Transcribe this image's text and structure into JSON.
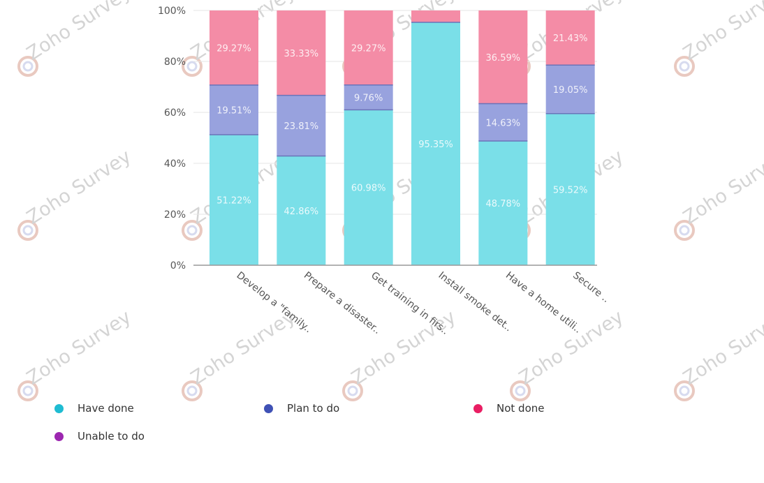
{
  "chart_data": {
    "type": "bar",
    "stacked": true,
    "percent": true,
    "categories": [
      "Develop a \"family..",
      "Prepare a disaster..",
      "Get training in firs..",
      "Install smoke det..",
      "Have a home utili..",
      "Secure .."
    ],
    "series": [
      {
        "name": "Have done",
        "color": "#7adfe8",
        "legend_color": "#1fbcd2",
        "values": [
          51.22,
          42.86,
          60.98,
          95.35,
          48.78,
          59.52
        ],
        "labels": [
          "51.22%",
          "42.86%",
          "60.98%",
          "95.35%",
          "48.78%",
          "59.52%"
        ]
      },
      {
        "name": "Unable to do",
        "color": "#b07bd0",
        "legend_color": "#9c27b0",
        "values": [
          0,
          0,
          0,
          0,
          0,
          0
        ],
        "labels": [
          "",
          "",
          "",
          "",
          "",
          ""
        ]
      },
      {
        "name": "Plan to do",
        "color": "#98a2de",
        "legend_color": "#3f51b5",
        "values": [
          19.51,
          23.81,
          9.76,
          0.0,
          14.63,
          19.05
        ],
        "labels": [
          "19.51%",
          "23.81%",
          "9.76%",
          "",
          "14.63%",
          "19.05%"
        ]
      },
      {
        "name": "Not done",
        "color": "#f48ca6",
        "legend_color": "#e91e63",
        "values": [
          29.27,
          33.33,
          29.27,
          4.65,
          36.59,
          21.43
        ],
        "labels": [
          "29.27%",
          "33.33%",
          "29.27%",
          "",
          "36.59%",
          "21.43%"
        ]
      }
    ],
    "y_ticks": [
      "0%",
      "20%",
      "40%",
      "60%",
      "80%",
      "100%"
    ],
    "ylim": [
      0,
      100
    ],
    "grid": true,
    "legend_position": "bottom",
    "legend_order": [
      "Have done",
      "Plan to do",
      "Not done",
      "Unable to do"
    ]
  },
  "watermark": {
    "text": "Zoho Survey"
  }
}
